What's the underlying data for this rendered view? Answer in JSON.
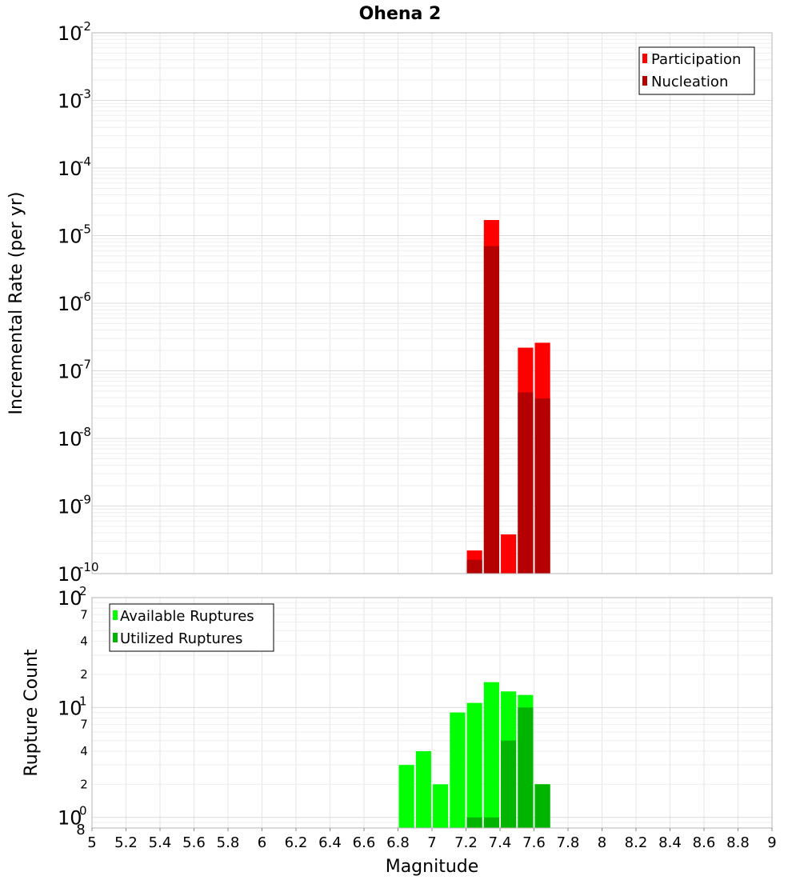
{
  "chart_data": [
    {
      "type": "bar",
      "title": "Ohena 2",
      "xlabel": "",
      "ylabel": "Incremental Rate (per yr)",
      "yscale": "log",
      "xlim": [
        5,
        9
      ],
      "ylim": [
        1e-10,
        0.01
      ],
      "grid": true,
      "legend_position": "top-right",
      "x_ticks": [
        "5",
        "5.2",
        "5.4",
        "5.6",
        "5.8",
        "6",
        "6.2",
        "6.4",
        "6.6",
        "6.8",
        "7",
        "7.2",
        "7.4",
        "7.6",
        "7.8",
        "8",
        "8.2",
        "8.4",
        "8.6",
        "8.8",
        "9"
      ],
      "y_tick_bases": [
        "10",
        "10",
        "10",
        "10",
        "10",
        "10",
        "10",
        "10",
        "10"
      ],
      "y_tick_exponents": [
        "-10",
        "-9",
        "-8",
        "-7",
        "-6",
        "-5",
        "-4",
        "-3",
        "-2"
      ],
      "x": [
        7.25,
        7.35,
        7.45,
        7.55,
        7.65
      ],
      "series": [
        {
          "name": "Participation",
          "color": "#ff0000",
          "values": [
            2.2e-10,
            1.7e-05,
            3.8e-10,
            2.2e-07,
            2.6e-07
          ]
        },
        {
          "name": "Nucleation",
          "color": "#b40000",
          "values": [
            1.6e-10,
            7e-06,
            null,
            4.8e-08,
            3.9e-08
          ]
        }
      ]
    },
    {
      "type": "bar",
      "title": "",
      "xlabel": "Magnitude",
      "ylabel": "Rupture Count",
      "yscale": "log",
      "xlim": [
        5,
        9
      ],
      "ylim": [
        0.8,
        100
      ],
      "grid": true,
      "legend_position": "top-left",
      "x_ticks": [
        "5",
        "5.2",
        "5.4",
        "5.6",
        "5.8",
        "6",
        "6.2",
        "6.4",
        "6.6",
        "6.8",
        "7",
        "7.2",
        "7.4",
        "7.6",
        "7.8",
        "8",
        "8.2",
        "8.4",
        "8.6",
        "8.8",
        "9"
      ],
      "y_major_bases": [
        "10",
        "10",
        "10"
      ],
      "y_major_exponents": [
        "0",
        "1",
        "2"
      ],
      "y_minor_ticks": [
        "8",
        "2",
        "4",
        "7",
        "2",
        "4",
        "7"
      ],
      "x": [
        6.85,
        6.95,
        7.05,
        7.15,
        7.25,
        7.35,
        7.45,
        7.55,
        7.65
      ],
      "series": [
        {
          "name": "Available Ruptures",
          "color": "#00ff00",
          "values": [
            3,
            4,
            2,
            9,
            11,
            17,
            14,
            13,
            2
          ]
        },
        {
          "name": "Utilized Ruptures",
          "color": "#00b400",
          "values": [
            null,
            null,
            null,
            null,
            1,
            1,
            5,
            10,
            2
          ]
        }
      ]
    }
  ]
}
